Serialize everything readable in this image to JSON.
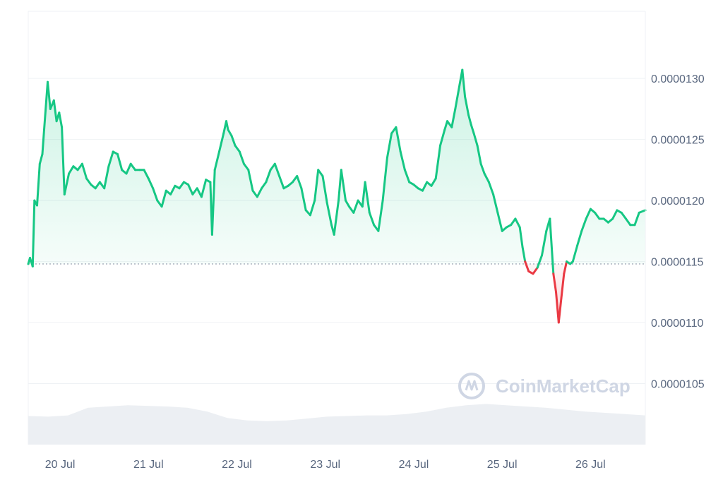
{
  "chart_data": {
    "type": "area",
    "watermark": "CoinMarketCap",
    "baseline_price": 1.148e-05,
    "ylim": [
      1e-05,
      1.355e-05
    ],
    "y_ticks": [
      "0.0000130",
      "0.0000125",
      "0.0000120",
      "0.0000115",
      "0.0000110",
      "0.0000105"
    ],
    "y_tick_values": [
      1.3e-05,
      1.25e-05,
      1.2e-05,
      1.15e-05,
      1.1e-05,
      1.05e-05
    ],
    "x_ticks": [
      "20 Jul",
      "21 Jul",
      "22 Jul",
      "23 Jul",
      "24 Jul",
      "25 Jul",
      "26 Jul"
    ],
    "x_tick_values": [
      20.0,
      21.0,
      22.0,
      23.0,
      24.0,
      25.0,
      26.0
    ],
    "xlim": [
      19.64,
      26.62
    ],
    "grid": "horizontal",
    "colors": {
      "up": "#16c784",
      "down": "#ea3943",
      "grid": "#eff2f5",
      "volume": "#eceff3"
    },
    "series": [
      {
        "values": [
          [
            19.64,
            1.148e-05
          ],
          [
            19.66,
            1.153e-05
          ],
          [
            19.69,
            1.146e-05
          ],
          [
            19.71,
            1.2e-05
          ],
          [
            19.74,
            1.196e-05
          ],
          [
            19.77,
            1.23e-05
          ],
          [
            19.8,
            1.238e-05
          ],
          [
            19.82,
            1.258e-05
          ],
          [
            19.86,
            1.297e-05
          ],
          [
            19.89,
            1.275e-05
          ],
          [
            19.93,
            1.282e-05
          ],
          [
            19.96,
            1.265e-05
          ],
          [
            19.99,
            1.272e-05
          ],
          [
            20.02,
            1.26e-05
          ],
          [
            20.05,
            1.205e-05
          ],
          [
            20.1,
            1.222e-05
          ],
          [
            20.15,
            1.228e-05
          ],
          [
            20.2,
            1.225e-05
          ],
          [
            20.25,
            1.23e-05
          ],
          [
            20.3,
            1.218e-05
          ],
          [
            20.35,
            1.213e-05
          ],
          [
            20.4,
            1.21e-05
          ],
          [
            20.45,
            1.215e-05
          ],
          [
            20.5,
            1.21e-05
          ],
          [
            20.55,
            1.228e-05
          ],
          [
            20.6,
            1.24e-05
          ],
          [
            20.65,
            1.238e-05
          ],
          [
            20.7,
            1.225e-05
          ],
          [
            20.75,
            1.222e-05
          ],
          [
            20.8,
            1.23e-05
          ],
          [
            20.85,
            1.225e-05
          ],
          [
            20.9,
            1.225e-05
          ],
          [
            20.95,
            1.225e-05
          ],
          [
            21.0,
            1.218e-05
          ],
          [
            21.05,
            1.21e-05
          ],
          [
            21.1,
            1.2e-05
          ],
          [
            21.15,
            1.195e-05
          ],
          [
            21.2,
            1.208e-05
          ],
          [
            21.25,
            1.205e-05
          ],
          [
            21.3,
            1.212e-05
          ],
          [
            21.35,
            1.21e-05
          ],
          [
            21.4,
            1.215e-05
          ],
          [
            21.45,
            1.213e-05
          ],
          [
            21.5,
            1.205e-05
          ],
          [
            21.55,
            1.21e-05
          ],
          [
            21.6,
            1.203e-05
          ],
          [
            21.65,
            1.217e-05
          ],
          [
            21.7,
            1.215e-05
          ],
          [
            21.72,
            1.172e-05
          ],
          [
            21.75,
            1.225e-05
          ],
          [
            21.8,
            1.24e-05
          ],
          [
            21.85,
            1.255e-05
          ],
          [
            21.88,
            1.265e-05
          ],
          [
            21.9,
            1.258e-05
          ],
          [
            21.94,
            1.253e-05
          ],
          [
            21.98,
            1.245e-05
          ],
          [
            22.03,
            1.24e-05
          ],
          [
            22.08,
            1.23e-05
          ],
          [
            22.13,
            1.225e-05
          ],
          [
            22.18,
            1.208e-05
          ],
          [
            22.23,
            1.203e-05
          ],
          [
            22.28,
            1.21e-05
          ],
          [
            22.33,
            1.215e-05
          ],
          [
            22.38,
            1.225e-05
          ],
          [
            22.43,
            1.23e-05
          ],
          [
            22.48,
            1.22e-05
          ],
          [
            22.53,
            1.21e-05
          ],
          [
            22.58,
            1.212e-05
          ],
          [
            22.63,
            1.215e-05
          ],
          [
            22.68,
            1.22e-05
          ],
          [
            22.73,
            1.21e-05
          ],
          [
            22.78,
            1.192e-05
          ],
          [
            22.83,
            1.188e-05
          ],
          [
            22.88,
            1.2e-05
          ],
          [
            22.92,
            1.225e-05
          ],
          [
            22.97,
            1.22e-05
          ],
          [
            23.02,
            1.198e-05
          ],
          [
            23.07,
            1.18e-05
          ],
          [
            23.1,
            1.172e-05
          ],
          [
            23.15,
            1.2e-05
          ],
          [
            23.18,
            1.225e-05
          ],
          [
            23.23,
            1.2e-05
          ],
          [
            23.27,
            1.195e-05
          ],
          [
            23.32,
            1.19e-05
          ],
          [
            23.37,
            1.2e-05
          ],
          [
            23.42,
            1.195e-05
          ],
          [
            23.45,
            1.215e-05
          ],
          [
            23.5,
            1.19e-05
          ],
          [
            23.55,
            1.18e-05
          ],
          [
            23.6,
            1.175e-05
          ],
          [
            23.65,
            1.2e-05
          ],
          [
            23.7,
            1.235e-05
          ],
          [
            23.75,
            1.255e-05
          ],
          [
            23.8,
            1.26e-05
          ],
          [
            23.85,
            1.24e-05
          ],
          [
            23.9,
            1.225e-05
          ],
          [
            23.95,
            1.215e-05
          ],
          [
            24.0,
            1.213e-05
          ],
          [
            24.05,
            1.21e-05
          ],
          [
            24.1,
            1.208e-05
          ],
          [
            24.15,
            1.215e-05
          ],
          [
            24.2,
            1.212e-05
          ],
          [
            24.25,
            1.218e-05
          ],
          [
            24.3,
            1.245e-05
          ],
          [
            24.35,
            1.258e-05
          ],
          [
            24.38,
            1.265e-05
          ],
          [
            24.43,
            1.26e-05
          ],
          [
            24.47,
            1.275e-05
          ],
          [
            24.52,
            1.295e-05
          ],
          [
            24.55,
            1.307e-05
          ],
          [
            24.58,
            1.285e-05
          ],
          [
            24.62,
            1.27e-05
          ],
          [
            24.65,
            1.262e-05
          ],
          [
            24.68,
            1.255e-05
          ],
          [
            24.72,
            1.245e-05
          ],
          [
            24.76,
            1.23e-05
          ],
          [
            24.8,
            1.222e-05
          ],
          [
            24.85,
            1.215e-05
          ],
          [
            24.9,
            1.205e-05
          ],
          [
            24.95,
            1.19e-05
          ],
          [
            25.0,
            1.175e-05
          ],
          [
            25.05,
            1.178e-05
          ],
          [
            25.1,
            1.18e-05
          ],
          [
            25.15,
            1.185e-05
          ],
          [
            25.2,
            1.178e-05
          ],
          [
            25.23,
            1.162e-05
          ],
          [
            25.26,
            1.15e-05
          ],
          [
            25.3,
            1.142e-05
          ],
          [
            25.35,
            1.14e-05
          ],
          [
            25.4,
            1.145e-05
          ],
          [
            25.45,
            1.155e-05
          ],
          [
            25.5,
            1.175e-05
          ],
          [
            25.54,
            1.185e-05
          ],
          [
            25.58,
            1.14e-05
          ],
          [
            25.61,
            1.125e-05
          ],
          [
            25.64,
            1.1e-05
          ],
          [
            25.67,
            1.12e-05
          ],
          [
            25.7,
            1.14e-05
          ],
          [
            25.73,
            1.15e-05
          ],
          [
            25.77,
            1.148e-05
          ],
          [
            25.8,
            1.15e-05
          ],
          [
            25.85,
            1.163e-05
          ],
          [
            25.9,
            1.175e-05
          ],
          [
            25.95,
            1.185e-05
          ],
          [
            26.0,
            1.193e-05
          ],
          [
            26.05,
            1.19e-05
          ],
          [
            26.1,
            1.185e-05
          ],
          [
            26.15,
            1.185e-05
          ],
          [
            26.2,
            1.182e-05
          ],
          [
            26.25,
            1.185e-05
          ],
          [
            26.3,
            1.192e-05
          ],
          [
            26.35,
            1.19e-05
          ],
          [
            26.4,
            1.185e-05
          ],
          [
            26.45,
            1.18e-05
          ],
          [
            26.5,
            1.18e-05
          ],
          [
            26.55,
            1.19e-05
          ],
          [
            26.62,
            1.192e-05
          ]
        ]
      }
    ],
    "volume": [
      0.45,
      0.44,
      0.46,
      0.58,
      0.6,
      0.62,
      0.61,
      0.6,
      0.58,
      0.52,
      0.42,
      0.38,
      0.37,
      0.38,
      0.41,
      0.44,
      0.45,
      0.46,
      0.46,
      0.48,
      0.52,
      0.58,
      0.62,
      0.64,
      0.62,
      0.6,
      0.58,
      0.55,
      0.52,
      0.5,
      0.48,
      0.46
    ]
  }
}
